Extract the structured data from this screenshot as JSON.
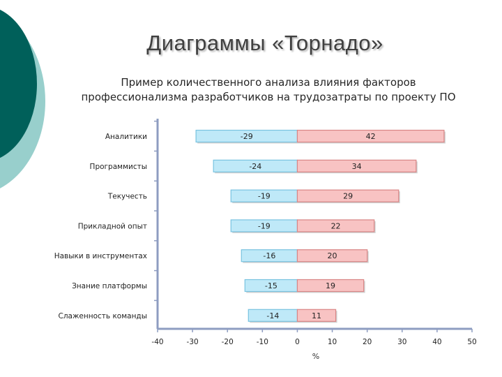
{
  "slide": {
    "title": "Диаграммы «Торнадо»",
    "subtitle_lines": [
      "Пример количественного анализа влияния факторов",
      "профессионализма разработчиков на трудозатраты по проекту ПО"
    ]
  },
  "colors": {
    "negative_fill": "#bfe9f8",
    "negative_stroke": "#79c3e0",
    "positive_fill": "#f8c3c3",
    "positive_stroke": "#d98585",
    "axis": "#8e9dc1",
    "deco_dark": "#00605a",
    "deco_light": "#98cfcc"
  },
  "chart_data": {
    "type": "bar",
    "orientation": "horizontal",
    "categories": [
      "Аналитики",
      "Программисты",
      "Текучесть",
      "Прикладной опыт",
      "Навыки в инструментах",
      "Знание платформы",
      "Слаженность команды"
    ],
    "series": [
      {
        "values": [
          -29,
          -24,
          -19,
          -19,
          -16,
          -15,
          -14
        ]
      },
      {
        "values": [
          42,
          34,
          29,
          22,
          20,
          19,
          11
        ]
      }
    ],
    "data_labels_negative": [
      "-29",
      "-24",
      "-19",
      "-19",
      "-16",
      "-15",
      "-14"
    ],
    "data_labels_positive": [
      "42",
      "34",
      "29",
      "22",
      "20",
      "19",
      "11"
    ],
    "xlim": [
      -40,
      50
    ],
    "xticks": [
      "-40",
      "-30",
      "-20",
      "-10",
      "0",
      "10",
      "20",
      "30",
      "40",
      "50"
    ],
    "xlabel": "%",
    "grid": false
  }
}
